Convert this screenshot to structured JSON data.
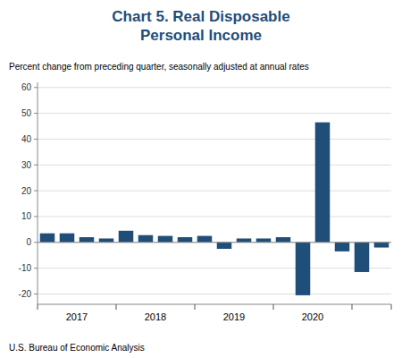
{
  "chart_data": {
    "type": "bar",
    "title": "Chart 5. Real Disposable\nPersonal Income",
    "subtitle": "Percent change from preceding quarter, seasonally adjusted at annual rates",
    "source": "U.S. Bureau of Economic Analysis",
    "categories": [
      "2017",
      null,
      null,
      null,
      "2018",
      null,
      null,
      null,
      "2019",
      null,
      null,
      null,
      "2020",
      null,
      null,
      null,
      null,
      null
    ],
    "values": [
      3.5,
      3.5,
      2.0,
      1.5,
      4.5,
      2.8,
      2.5,
      2.0,
      2.5,
      -2.5,
      1.5,
      1.5,
      2.0,
      -20.5,
      46.5,
      -3.5,
      -11.5,
      -2.0
    ],
    "color": "#1F4E79",
    "ylim": [
      -24,
      62
    ],
    "yticks": [
      -20,
      -10,
      0,
      10,
      20,
      30,
      40,
      50,
      60
    ],
    "grid": true
  }
}
